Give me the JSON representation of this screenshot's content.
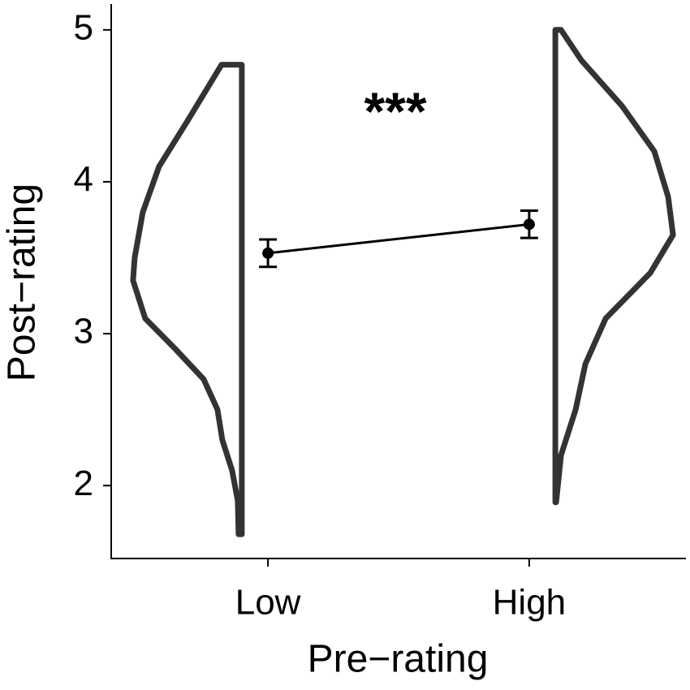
{
  "chart_data": {
    "type": "violin",
    "x_label": "Pre−rating",
    "y_label": "Post−rating",
    "annotation": "***",
    "categories": [
      "Low",
      "High"
    ],
    "means": [
      3.53,
      3.72
    ],
    "errors": [
      0.09,
      0.09
    ],
    "violins": [
      {
        "y": [
          4.77,
          4.77,
          4.4,
          4.1,
          3.8,
          3.5,
          3.35,
          3.1,
          2.9,
          2.7,
          2.5,
          2.3,
          2.1,
          1.9,
          1.68,
          1.68
        ],
        "density": [
          0,
          0.25,
          0.67,
          1.02,
          1.22,
          1.32,
          1.34,
          1.19,
          0.82,
          0.47,
          0.3,
          0.24,
          0.12,
          0.05,
          0.04,
          0
        ]
      },
      {
        "y": [
          5.0,
          5.0,
          4.8,
          4.5,
          4.2,
          3.9,
          3.65,
          3.4,
          3.1,
          2.8,
          2.5,
          2.2,
          1.89,
          1.89
        ],
        "density": [
          0,
          0.07,
          0.32,
          0.82,
          1.22,
          1.39,
          1.45,
          1.17,
          0.62,
          0.37,
          0.25,
          0.07,
          0.01,
          0
        ]
      }
    ],
    "ylim": [
      1.52,
      5.17
    ],
    "yticks": [
      2,
      3,
      4,
      5
    ],
    "violin_color": "#333333",
    "mean_color": "#000000"
  }
}
